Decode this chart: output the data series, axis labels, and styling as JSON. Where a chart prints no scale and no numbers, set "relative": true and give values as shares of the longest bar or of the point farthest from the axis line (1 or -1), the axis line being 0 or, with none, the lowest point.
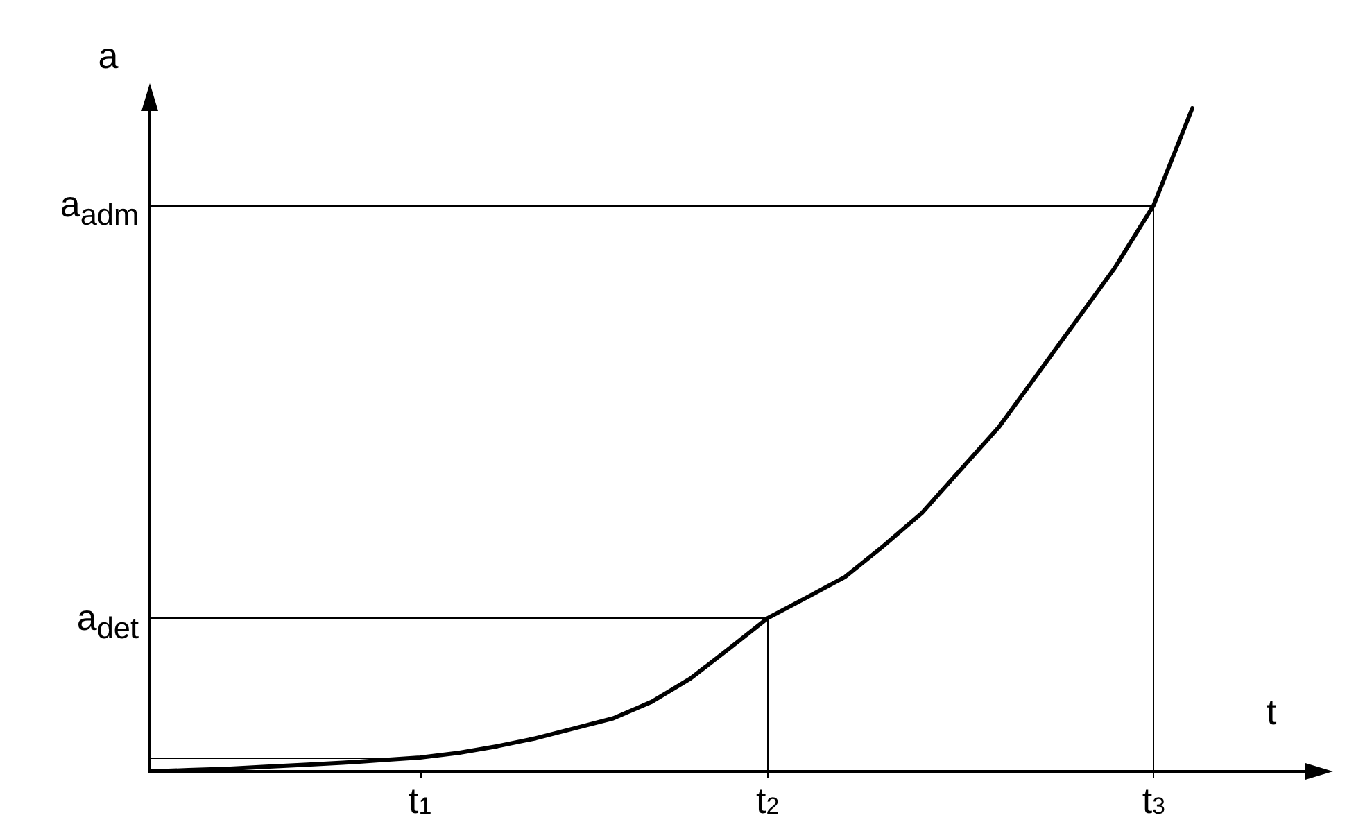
{
  "chart_data": {
    "type": "line",
    "relative": true,
    "xlabel": "t",
    "ylabel": "a",
    "categories": [
      null,
      null,
      null,
      null,
      null,
      null,
      null,
      "t$_{1}$",
      null,
      null,
      null,
      null,
      null,
      null,
      null,
      null,
      "t$_{2}$",
      null,
      null,
      null,
      null,
      null,
      null,
      null,
      null,
      null,
      "t$_{3}$",
      null,
      null,
      null,
      null
    ],
    "series": [
      {
        "color": "#000000",
        "values": [
          0,
          0.002,
          0.004,
          0.007,
          0.01,
          0.013,
          0.017,
          0.021,
          0.028,
          0.038,
          0.05,
          0.065,
          0.08,
          0.105,
          0.14,
          0.185,
          0.231,
          0.262,
          0.293,
          0.34,
          0.39,
          0.455,
          0.52,
          0.6,
          0.68,
          0.76,
          0.854,
          1,
          null,
          null,
          null
        ]
      }
    ],
    "ref_lines": [
      {
        "axis": "y",
        "value": 0.854,
        "label": "a$_{adm}$"
      },
      {
        "axis": "y",
        "value": 0.231,
        "label": "a$_{det}$"
      },
      {
        "axis": "y",
        "value": 0.021
      },
      {
        "axis": "x",
        "value": "t$_{2}$"
      },
      {
        "axis": "x",
        "value": "t$_{3}$"
      }
    ],
    "grid": false,
    "marker": "none",
    "line_style": "solid"
  }
}
